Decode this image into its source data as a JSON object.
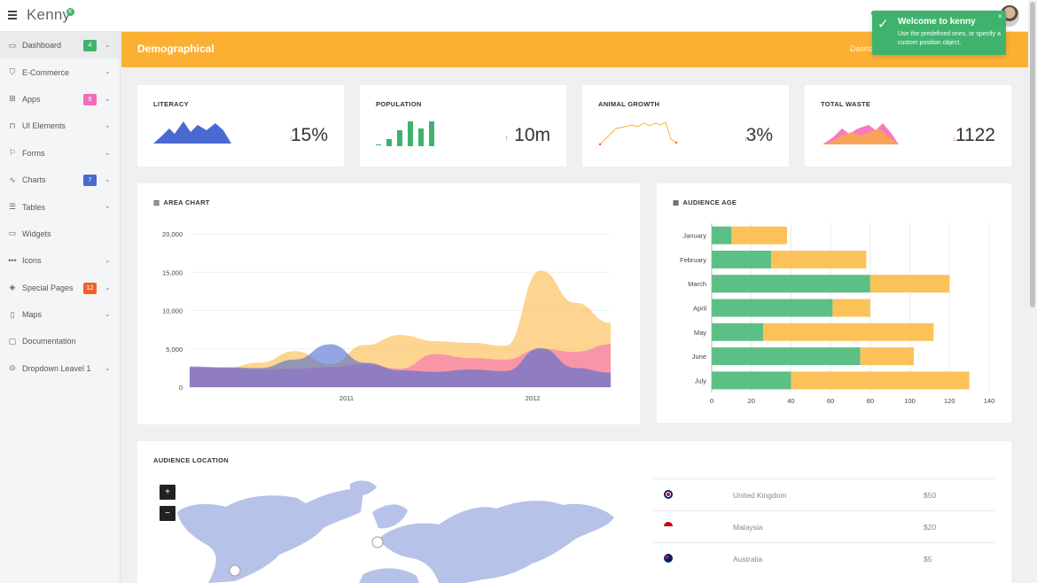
{
  "app": {
    "brand": "Kenny",
    "brand_mark": "K"
  },
  "sidebar": {
    "items": [
      {
        "label": "Dashboard",
        "icon": "dashboard-icon",
        "badge": "4",
        "badge_color": "#3fb36d",
        "chev": true,
        "active": true
      },
      {
        "label": "E-Commerce",
        "icon": "cart-icon",
        "badge": "",
        "chev": true
      },
      {
        "label": "Apps",
        "icon": "grid-icon",
        "badge": "9",
        "badge_color": "#f56cb8",
        "chev": true
      },
      {
        "label": "UI Elements",
        "icon": "window-icon",
        "badge": "",
        "chev": true
      },
      {
        "label": "Forms",
        "icon": "flag-icon",
        "badge": "",
        "chev": true
      },
      {
        "label": "Charts",
        "icon": "chart-line-icon",
        "badge": "7",
        "badge_color": "#4b6ad1",
        "chev": true
      },
      {
        "label": "Tables",
        "icon": "list-icon",
        "badge": "",
        "chev": true
      },
      {
        "label": "Widgets",
        "icon": "widget-icon",
        "badge": "",
        "chev": false
      },
      {
        "label": "Icons",
        "icon": "dots-icon",
        "badge": "",
        "chev": true
      },
      {
        "label": "Special Pages",
        "icon": "layers-icon",
        "badge": "12",
        "badge_color": "#f0612e",
        "chev": true
      },
      {
        "label": "Maps",
        "icon": "map-icon",
        "badge": "",
        "chev": true
      },
      {
        "label": "Documentation",
        "icon": "document-icon",
        "badge": "",
        "chev": false
      },
      {
        "label": "Dropdown Leavel 1",
        "icon": "circle-arrow-icon",
        "badge": "",
        "chev": true
      }
    ]
  },
  "header": {
    "title": "Demographical",
    "crumb_start": "Dashb",
    "crumb_end": "al"
  },
  "toast": {
    "title": "Welcome to kenny",
    "body": "Use the predefined ones, or specify a custom position object.",
    "close": "×"
  },
  "stats": [
    {
      "label": "LITERACY",
      "value": "15%",
      "trend": "up",
      "trend_color": "#3fb36d",
      "chart": "area",
      "color": "#4b6ad1"
    },
    {
      "label": "POPULATION",
      "value": "10m",
      "trend": "up",
      "trend_color": "#3fb36d",
      "chart": "bar",
      "color": "#3fb36d"
    },
    {
      "label": "ANIMAL GROWTH",
      "value": "3%",
      "trend": "down",
      "trend_color": "#f0612e",
      "chart": "line",
      "color": "#fbb034"
    },
    {
      "label": "TOTAL WASTE",
      "value": "1122",
      "trend": "down",
      "trend_color": "#f0612e",
      "chart": "stacked-area",
      "color": "#f56cb8"
    }
  ],
  "area_panel": {
    "title": "AREA CHART"
  },
  "age_panel": {
    "title": "AUDIENCE AGE"
  },
  "location_panel": {
    "title": "AUDIENCE LOCATION",
    "zoom_in": "+",
    "zoom_out": "−"
  },
  "locations": [
    {
      "country": "United Kingdom",
      "amount": "$50",
      "flag": "uk-flag-icon"
    },
    {
      "country": "Malaysia",
      "amount": "$20",
      "flag": "malaysia-flag-icon"
    },
    {
      "country": "Australia",
      "amount": "$5",
      "flag": "australia-flag-icon"
    }
  ],
  "chart_data": [
    {
      "type": "area",
      "title": "AREA CHART",
      "x_ticks": [
        "2011",
        "2012"
      ],
      "y_ticks": [
        "0",
        "5,000",
        "10,000",
        "15,000",
        "20,000"
      ],
      "ylim": [
        0,
        20000
      ],
      "series": [
        {
          "color": "#fbb034",
          "values": [
            2600,
            2500,
            3200,
            4700,
            3000,
            5500,
            6800,
            6000,
            5800,
            5400,
            15200,
            11000,
            8400
          ]
        },
        {
          "color": "#f56cb8",
          "values": [
            2600,
            2500,
            2300,
            2400,
            2600,
            3000,
            2400,
            4300,
            3800,
            3600,
            5000,
            4600,
            5600
          ]
        },
        {
          "color": "#4b6ad1",
          "values": [
            2700,
            2600,
            2500,
            3600,
            5600,
            3200,
            2200,
            2000,
            2300,
            2100,
            5100,
            2500,
            1900
          ]
        }
      ]
    },
    {
      "type": "bar",
      "title": "AUDIENCE AGE",
      "orientation": "horizontal-stacked",
      "categories": [
        "January",
        "February",
        "March",
        "April",
        "May",
        "June",
        "July"
      ],
      "x_ticks": [
        "0",
        "20",
        "40",
        "60",
        "80",
        "100",
        "120",
        "140"
      ],
      "xlim": [
        0,
        140
      ],
      "series": [
        {
          "color": "#5cbf85",
          "values": [
            10,
            30,
            80,
            61,
            26,
            75,
            40
          ]
        },
        {
          "color": "#fbc25a",
          "values": [
            28,
            48,
            40,
            19,
            86,
            27,
            90
          ]
        }
      ]
    }
  ]
}
